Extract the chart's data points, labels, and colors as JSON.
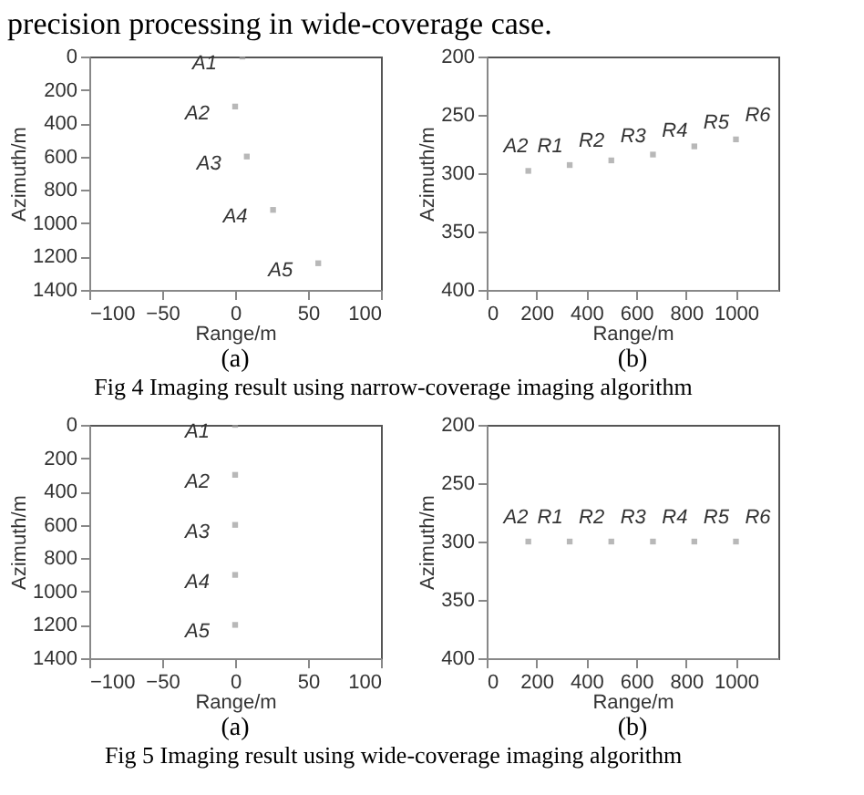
{
  "chart_data": [
    {
      "type": "scatter",
      "title": "precision processing in wide-coverage case.",
      "xlabel": "Range/m",
      "ylabel": "Azimuth/m",
      "xlim": [
        -100,
        100
      ],
      "xticks": [
        -100,
        -50,
        0,
        50,
        100
      ],
      "ylim": [
        1400,
        0
      ],
      "yticks": [
        0,
        200,
        400,
        600,
        800,
        1000,
        1200,
        1400
      ],
      "grid": false,
      "marker": "square",
      "x": [
        5,
        0,
        8,
        26,
        57
      ],
      "series": [
        {
          "color": "#9a9a9a",
          "values": [
            0,
            300,
            600,
            920,
            1240
          ]
        }
      ],
      "annotations": [
        {
          "text": "A1",
          "x": 5,
          "y": 0
        },
        {
          "text": "A2",
          "x": 0,
          "y": 300
        },
        {
          "text": "A3",
          "x": 8,
          "y": 600
        },
        {
          "text": "A4",
          "x": 26,
          "y": 920
        },
        {
          "text": "A5",
          "x": 57,
          "y": 1240
        },
        "(a)"
      ]
    },
    {
      "type": "scatter",
      "xlabel": "Range/m",
      "ylabel": "Azimuth/m",
      "xlim": [
        0,
        1170
      ],
      "xticks": [
        0,
        200,
        400,
        600,
        800,
        1000
      ],
      "ylim": [
        400,
        200
      ],
      "yticks": [
        200,
        250,
        300,
        350,
        400
      ],
      "grid": false,
      "marker": "square",
      "x": [
        167,
        333,
        500,
        667,
        833,
        1000
      ],
      "series": [
        {
          "color": "#9a9a9a",
          "values": [
            298,
            293,
            289,
            284,
            277,
            271
          ]
        }
      ],
      "annotations": [
        "A2",
        {
          "text": "R1",
          "x": 167,
          "y": 298
        },
        {
          "text": "R2",
          "x": 333,
          "y": 293
        },
        {
          "text": "R3",
          "x": 500,
          "y": 289
        },
        {
          "text": "R4",
          "x": 667,
          "y": 284
        },
        {
          "text": "R5",
          "x": 833,
          "y": 277
        },
        {
          "text": "R6",
          "x": 1000,
          "y": 271
        },
        "(b)",
        "Fig 4 Imaging result using narrow-coverage imaging algorithm"
      ]
    },
    {
      "type": "scatter",
      "xlabel": "Range/m",
      "ylabel": "Azimuth/m",
      "xlim": [
        -100,
        100
      ],
      "xticks": [
        -100,
        -50,
        0,
        50,
        100
      ],
      "ylim": [
        1400,
        0
      ],
      "yticks": [
        0,
        200,
        400,
        600,
        800,
        1000,
        1200,
        1400
      ],
      "grid": false,
      "marker": "square",
      "x": [
        0,
        0,
        0,
        0,
        0
      ],
      "series": [
        {
          "color": "#9a9a9a",
          "values": [
            0,
            300,
            600,
            900,
            1200
          ]
        }
      ],
      "annotations": [
        {
          "text": "A1",
          "x": 0,
          "y": 0
        },
        {
          "text": "A2",
          "x": 0,
          "y": 300
        },
        {
          "text": "A3",
          "x": 0,
          "y": 600
        },
        {
          "text": "A4",
          "x": 0,
          "y": 900
        },
        {
          "text": "A5",
          "x": 0,
          "y": 1200
        },
        "(a)"
      ]
    },
    {
      "type": "scatter",
      "xlabel": "Range/m",
      "ylabel": "Azimuth/m",
      "xlim": [
        0,
        1170
      ],
      "xticks": [
        0,
        200,
        400,
        600,
        800,
        1000
      ],
      "ylim": [
        400,
        200
      ],
      "yticks": [
        200,
        250,
        300,
        350,
        400
      ],
      "grid": false,
      "marker": "square",
      "x": [
        167,
        333,
        500,
        667,
        833,
        1000
      ],
      "series": [
        {
          "color": "#9a9a9a",
          "values": [
            300,
            300,
            300,
            300,
            300,
            300
          ]
        }
      ],
      "annotations": [
        "A2",
        {
          "text": "R1",
          "x": 167,
          "y": 300
        },
        {
          "text": "R2",
          "x": 333,
          "y": 300
        },
        {
          "text": "R3",
          "x": 500,
          "y": 300
        },
        {
          "text": "R4",
          "x": 667,
          "y": 300
        },
        {
          "text": "R5",
          "x": 833,
          "y": 300
        },
        {
          "text": "R6",
          "x": 1000,
          "y": 300
        },
        "(b)",
        "Fig 5 Imaging result using wide-coverage imaging algorithm"
      ]
    }
  ]
}
